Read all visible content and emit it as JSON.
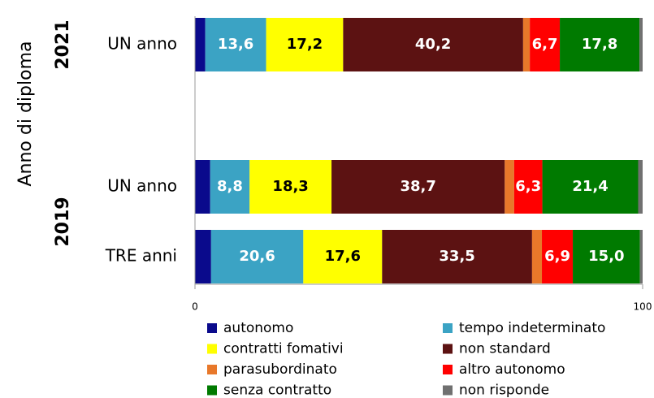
{
  "chart_data": {
    "type": "stacked-bar-horizontal",
    "y_label": "Anno di diploma",
    "group_labels": [
      "2021",
      "2019"
    ],
    "categories": [
      "UN anno",
      "UN anno",
      "TRE anni"
    ],
    "xlim": [
      0,
      100
    ],
    "xticks": [
      0,
      100
    ],
    "series": [
      {
        "name": "autonomo",
        "color": "#0a0a8c",
        "values": [
          2.3,
          3.4,
          3.6
        ],
        "value_labels": [
          null,
          null,
          null
        ]
      },
      {
        "name": "tempo indeterminato",
        "color": "#3ba3c4",
        "values": [
          13.6,
          8.8,
          20.6
        ],
        "value_labels": [
          "13,6",
          "8,8",
          "20,6"
        ]
      },
      {
        "name": "contratti fomativi",
        "color": "#ffff00",
        "values": [
          17.2,
          18.3,
          17.6
        ],
        "value_labels": [
          "17,2",
          "18,3",
          "17,6"
        ]
      },
      {
        "name": "non standard",
        "color": "#5c1212",
        "values": [
          40.2,
          38.7,
          33.5
        ],
        "value_labels": [
          "40,2",
          "38,7",
          "33,5"
        ]
      },
      {
        "name": "parasubordinato",
        "color": "#e8782a",
        "values": [
          1.5,
          2.1,
          2.2
        ],
        "value_labels": [
          null,
          null,
          null
        ]
      },
      {
        "name": "altro autonomo",
        "color": "#ff0000",
        "values": [
          6.7,
          6.3,
          6.9
        ],
        "value_labels": [
          "6,7",
          "6,3",
          "6,9"
        ]
      },
      {
        "name": "senza contratto",
        "color": "#007a00",
        "values": [
          17.8,
          21.4,
          15.0
        ],
        "value_labels": [
          "17,8",
          "21,4",
          "15,0"
        ]
      },
      {
        "name": "non risponde",
        "color": "#707070",
        "values": [
          0.7,
          1.0,
          0.6
        ],
        "value_labels": [
          null,
          null,
          null
        ]
      }
    ]
  }
}
